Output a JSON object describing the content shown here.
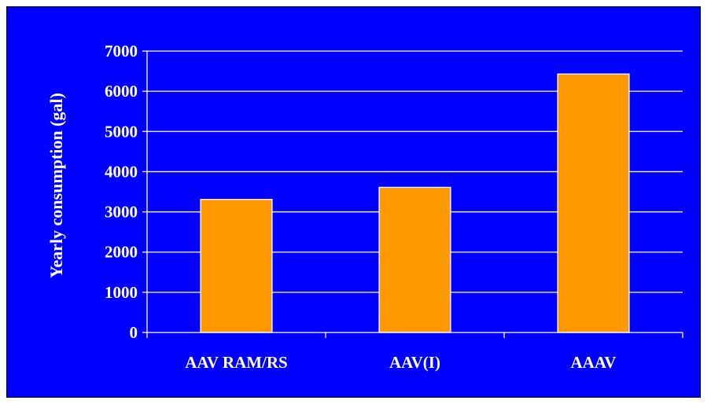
{
  "chart_data": {
    "type": "bar",
    "categories": [
      "AAV RAM/RS",
      "AAV(I)",
      "AAAV"
    ],
    "values": [
      3310,
      3610,
      6430
    ],
    "title": "",
    "xlabel": "",
    "ylabel": "Yearly consumption (gal)",
    "ylim": [
      0,
      7000
    ],
    "yticks": [
      0,
      1000,
      2000,
      3000,
      4000,
      5000,
      6000,
      7000
    ],
    "grid": true,
    "legend": "none",
    "colors": {
      "background": "#0000ff",
      "bar": "#ff9900",
      "bar_border": "#ffffff",
      "gridline": "#ffffff",
      "text": "#ffffff"
    }
  }
}
